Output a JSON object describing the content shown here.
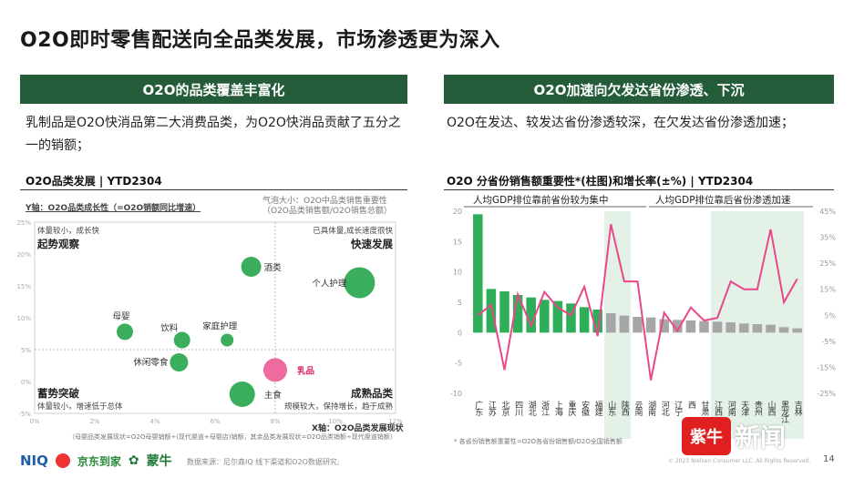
{
  "page": {
    "title": "O2O即时零售配送向全品类发展，市场渗透更为深入",
    "page_number": "14",
    "copyright": "© 2023 Nielsen Consumer LLC. All Rights Reserved.",
    "source": "数据来源：尼尔森IQ 线下渠道和O2O数据研究;",
    "logos": {
      "niq": "NIQ",
      "jd": "京东到家",
      "mengniu": "蒙牛"
    },
    "watermark": {
      "badge": "紫牛",
      "text": "新闻"
    }
  },
  "left": {
    "band": "O2O的品类覆盖丰富化",
    "desc": "乳制品是O2O快消品第二大消费品类，为O2O快消品贡献了五分之一的销额；",
    "subheading": "O2O品类发展 | YTD2304",
    "y_axis_note": "Y轴：O2O品类成长性（=O2O销额同比增速）",
    "bubble_note": "气泡大小：O2O中品类销售重要性（O2O品类销售额/O2O销售总额）",
    "x_axis_note": "X轴：O2O品类发展现状",
    "x_footnote": "（母婴品类发展现状=O2O母婴销额÷(现代渠道+母婴店)销额，其余品类发展现状=O2O品类销额÷现代渠道销额）",
    "quadrants": [
      {
        "title": "起势观察",
        "note": "体量较小，成长快"
      },
      {
        "title": "快速发展",
        "note": "已具体量,成长速度很快"
      },
      {
        "title": "蓄势突破",
        "note": "体量较小，增速低于总体"
      },
      {
        "title": "成熟品类",
        "note": "规模较大，保持增长，趋于成熟"
      }
    ]
  },
  "right": {
    "band": "O2O加速向欠发达省份渗透、下沉",
    "desc": "O2O在发达、较发达省份渗透较深，在欠发达省份渗透加速；",
    "subheading": "O2O 分省份销售额重要性*(柱图)和增长率(±%) | YTD2304",
    "annot_left": "人均GDP排位靠前省份较为集中",
    "annot_right": "人均GDP排位靠后省份渗透加速",
    "footnote": "* 各省份销售额重要性=O2O各省份销售额/O2O全国销售额"
  },
  "colors": {
    "green_band": "#245c3a",
    "bar_green": "#2fae5a",
    "bar_gray": "#a6a6a6",
    "line_pink": "#e8488a",
    "bubble_green": "#3aae5c",
    "bubble_pink": "#ee6a9f",
    "shade": "#e3f1e7"
  },
  "chart_data": [
    {
      "type": "scatter",
      "title": "O2O品类发展 | YTD2304",
      "xlabel": "X轴：O2O品类发展现状",
      "ylabel": "Y轴：O2O品类成长性（=O2O销额同比增速）",
      "xlim": [
        0,
        12
      ],
      "ylim": [
        -5,
        25
      ],
      "x_ticks": [
        "0%",
        "2%",
        "4%",
        "6%",
        "8%",
        "10%",
        "12%"
      ],
      "y_ticks": [
        "-5%",
        "0%",
        "5%",
        "10%",
        "15%",
        "20%",
        "25%"
      ],
      "points": [
        {
          "name": "酒类",
          "x": 7.2,
          "y": 18.0,
          "size": 11,
          "highlight": false
        },
        {
          "name": "个人护理",
          "x": 10.8,
          "y": 15.5,
          "size": 17,
          "highlight": false
        },
        {
          "name": "母婴",
          "x": 3.0,
          "y": 7.8,
          "size": 9,
          "highlight": false
        },
        {
          "name": "饮料",
          "x": 4.9,
          "y": 6.5,
          "size": 9,
          "highlight": false
        },
        {
          "name": "家庭护理",
          "x": 6.4,
          "y": 6.5,
          "size": 7,
          "highlight": false
        },
        {
          "name": "休闲零食",
          "x": 4.8,
          "y": 3.0,
          "size": 10,
          "highlight": false
        },
        {
          "name": "乳品",
          "x": 8.0,
          "y": 1.8,
          "size": 13,
          "highlight": true
        },
        {
          "name": "主食",
          "x": 6.9,
          "y": -2.0,
          "size": 14,
          "highlight": false
        }
      ],
      "grid": true,
      "legend": "none"
    },
    {
      "type": "bar",
      "title": "O2O 分省份销售额重要性*(柱图)和增长率(±%) | YTD2304",
      "y_left_ticks": [
        "-10",
        "-5",
        "0",
        "5",
        "10",
        "15",
        "20"
      ],
      "y_right_ticks": [
        "-25%",
        "-15%",
        "-5%",
        "5%",
        "15%",
        "25%",
        "35%",
        "45%"
      ],
      "ylim_left": [
        -10,
        20
      ],
      "ylim_right": [
        -25,
        45
      ],
      "categories": [
        "广东",
        "江苏",
        "北京",
        "四川",
        "湖北",
        "浙江",
        "上海",
        "重庆",
        "安徽",
        "福建",
        "山东",
        "陕西",
        "云南",
        "湖南",
        "河北",
        "辽宁",
        "西",
        "甘肃",
        "江西",
        "河南",
        "天津",
        "贵州",
        "山西",
        "黑龙江",
        "吉林"
      ],
      "series": [
        {
          "kind": "bar",
          "values": [
            19.5,
            7.2,
            6.8,
            6.2,
            5.8,
            5.4,
            5.2,
            4.8,
            4.2,
            3.8,
            3.2,
            2.8,
            2.6,
            2.5,
            2.2,
            2.1,
            2.0,
            1.9,
            1.8,
            1.7,
            1.5,
            1.4,
            1.3,
            0.9,
            0.7
          ]
        },
        {
          "kind": "line",
          "values": [
            5,
            9,
            -16,
            13,
            1,
            14,
            8,
            5,
            16,
            -3,
            40,
            18,
            18,
            -20,
            6,
            -1,
            8,
            3,
            4,
            18,
            15,
            15,
            38,
            10,
            19
          ]
        }
      ],
      "grid": false,
      "legend": "none"
    }
  ]
}
